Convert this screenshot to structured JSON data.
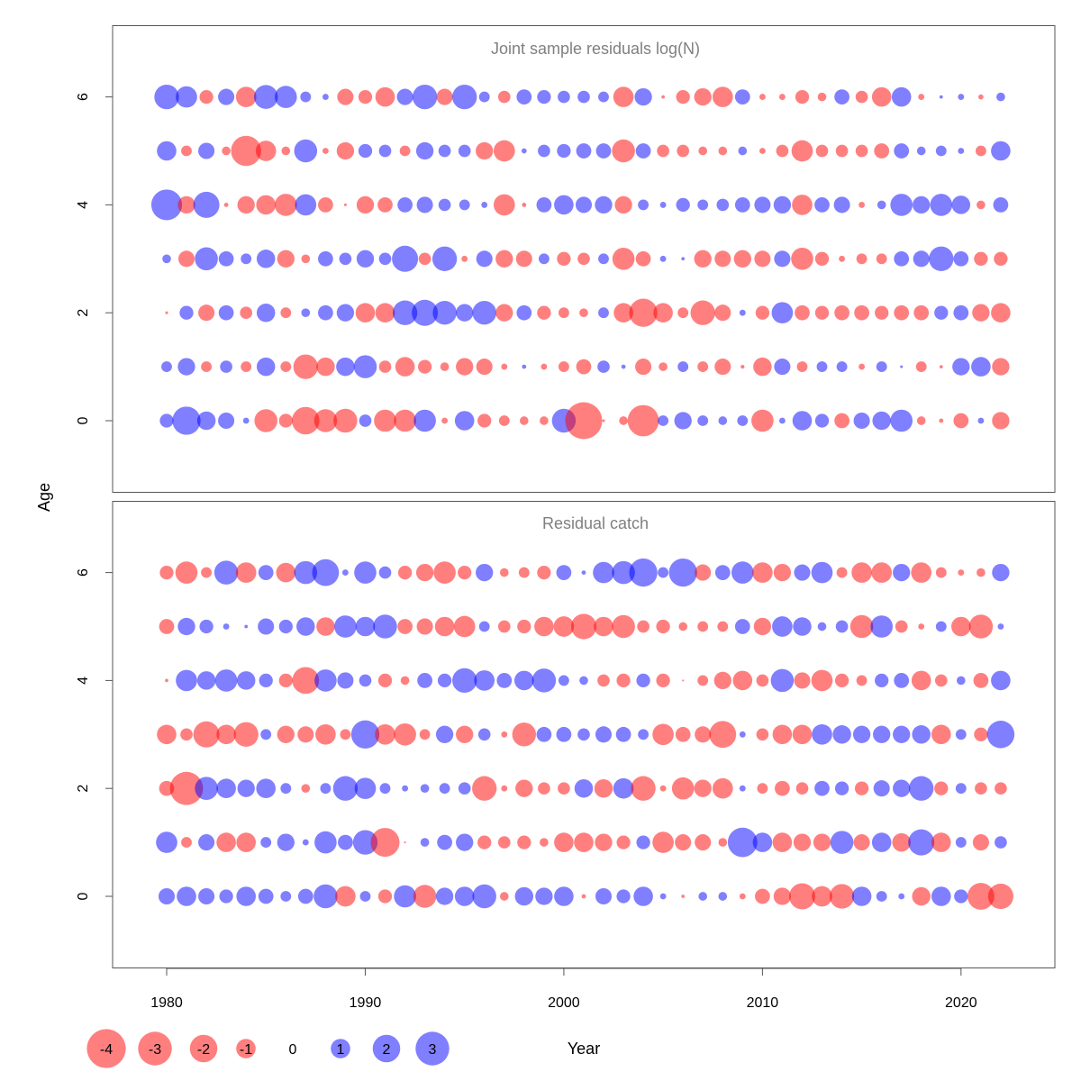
{
  "colors": {
    "negative": "#ff0000",
    "positive": "#0000ff",
    "panel_title": "#808080",
    "frame": "#555555",
    "text": "#000000"
  },
  "bubble_alpha": 0.5,
  "axis": {
    "xlabel": "Year",
    "ylabel": "Age",
    "x_ticks": [
      1980,
      1990,
      2000,
      2010,
      2020
    ],
    "x_tick_labels": [
      "1980",
      "1990",
      "2000",
      "2010",
      "2020"
    ],
    "y_ticks": [
      0,
      2,
      4,
      6
    ],
    "y_tick_labels": [
      "0",
      "2",
      "4",
      "6"
    ]
  },
  "legend": {
    "items": [
      {
        "label": "-4",
        "value": -4
      },
      {
        "label": "-3",
        "value": -3
      },
      {
        "label": "-2",
        "value": -2
      },
      {
        "label": "-1",
        "value": -1
      },
      {
        "label": "0",
        "value": 0
      },
      {
        "label": "1",
        "value": 1
      },
      {
        "label": "2",
        "value": 2
      },
      {
        "label": "3",
        "value": 3
      }
    ]
  },
  "chart_data": [
    {
      "type": "scatter",
      "title": "Joint sample residuals log(N)",
      "xlabel": "",
      "ylabel": "Age",
      "xlim": [
        1977.5,
        2024.5
      ],
      "ylim": [
        -1.3,
        7.3
      ],
      "encoding": "bubble area proportional to |residual|; red = negative, blue = positive",
      "x": [
        1980,
        1981,
        1982,
        1983,
        1984,
        1985,
        1986,
        1987,
        1988,
        1989,
        1990,
        1991,
        1992,
        1993,
        1994,
        1995,
        1996,
        1997,
        1998,
        1999,
        2000,
        2001,
        2002,
        2003,
        2004,
        2005,
        2006,
        2007,
        2008,
        2009,
        2010,
        2011,
        2012,
        2013,
        2014,
        2015,
        2016,
        2017,
        2018,
        2019,
        2020,
        2021,
        2022
      ],
      "ages": [
        6,
        5,
        4,
        3,
        2,
        1,
        0
      ],
      "residuals": {
        "6": [
          1.6,
          1.2,
          -0.5,
          0.7,
          -1.1,
          1.5,
          1.3,
          0.3,
          0.1,
          -0.7,
          -0.5,
          -1.0,
          0.7,
          1.6,
          -0.7,
          1.6,
          0.3,
          -0.4,
          0.6,
          0.5,
          0.4,
          0.4,
          0.3,
          -1.1,
          0.8,
          -0.03,
          -0.5,
          -0.8,
          -1.1,
          0.6,
          -0.1,
          -0.1,
          -0.5,
          -0.2,
          0.6,
          -0.4,
          -1.0,
          1.0,
          -0.1,
          0.03,
          0.1,
          -0.07,
          0.2
        ],
        "5": [
          1.0,
          -0.3,
          0.7,
          -0.2,
          -2.4,
          -1.1,
          -0.2,
          1.4,
          -0.1,
          -0.8,
          0.5,
          0.4,
          -0.3,
          0.8,
          0.4,
          0.4,
          -0.8,
          -1.2,
          0.07,
          0.4,
          0.5,
          0.6,
          0.6,
          -1.4,
          0.6,
          -0.4,
          -0.4,
          -0.2,
          -0.2,
          0.2,
          -0.1,
          -0.4,
          -1.2,
          -0.4,
          -0.4,
          -0.4,
          -0.6,
          0.6,
          0.2,
          0.3,
          0.1,
          -0.3,
          1.0
        ],
        "4": [
          2.5,
          -0.8,
          1.8,
          -0.05,
          -0.8,
          -1.0,
          -1.3,
          1.2,
          -0.6,
          -0.02,
          -0.8,
          -0.6,
          0.6,
          0.7,
          0.4,
          0.3,
          0.1,
          -1.2,
          -0.05,
          0.6,
          1.0,
          0.7,
          0.8,
          -0.8,
          0.3,
          0.1,
          0.5,
          0.3,
          0.4,
          0.6,
          0.7,
          0.8,
          -1.1,
          0.6,
          0.7,
          -0.1,
          0.2,
          1.3,
          0.8,
          1.3,
          0.9,
          -0.2,
          0.6
        ],
        "3": [
          0.2,
          -0.7,
          1.4,
          0.6,
          0.3,
          0.9,
          -0.8,
          -0.2,
          0.6,
          0.4,
          0.8,
          0.4,
          1.8,
          -0.4,
          1.6,
          -0.1,
          0.7,
          -0.8,
          -0.7,
          0.3,
          -0.5,
          -0.4,
          0.3,
          -1.3,
          -0.6,
          0.1,
          0.03,
          -0.8,
          -0.7,
          -0.8,
          -0.7,
          0.7,
          -1.3,
          -0.5,
          -0.1,
          -0.3,
          -0.3,
          0.6,
          0.7,
          1.6,
          0.6,
          -0.5,
          -0.5
        ],
        "2": [
          -0.02,
          0.5,
          -0.7,
          0.6,
          -0.4,
          0.9,
          -0.3,
          0.2,
          0.6,
          0.8,
          -1.0,
          -1.0,
          1.6,
          1.8,
          1.5,
          0.8,
          1.5,
          -0.8,
          0.6,
          -0.5,
          -0.3,
          -0.2,
          0.3,
          -1.0,
          -2.1,
          -1.0,
          -0.3,
          -1.6,
          -0.7,
          0.1,
          -0.5,
          1.2,
          -0.6,
          -0.5,
          -0.6,
          -0.6,
          -0.5,
          -0.6,
          -0.6,
          0.5,
          0.6,
          -0.8,
          -1.0
        ],
        "1": [
          0.3,
          0.8,
          -0.3,
          0.4,
          -0.3,
          0.9,
          -0.3,
          -1.6,
          -0.9,
          0.9,
          1.4,
          -0.4,
          -1.0,
          -0.5,
          -0.2,
          -0.8,
          -0.7,
          -0.1,
          0.05,
          -0.1,
          -0.3,
          -0.6,
          0.4,
          0.05,
          -0.7,
          -0.2,
          0.3,
          -0.3,
          -0.7,
          -0.04,
          -0.9,
          0.7,
          -0.3,
          0.3,
          0.3,
          -0.1,
          0.3,
          0.02,
          -0.3,
          -0.03,
          0.8,
          1.0,
          -0.8
        ],
        "0": [
          0.5,
          2.1,
          0.9,
          0.7,
          0.1,
          -1.4,
          -0.5,
          -2.0,
          -1.4,
          -1.5,
          0.4,
          -1.3,
          -1.3,
          1.3,
          -0.1,
          1.0,
          -0.5,
          -0.3,
          -0.2,
          -0.2,
          1.5,
          -3.6,
          -0.02,
          -0.2,
          -2.6,
          0.3,
          0.8,
          0.3,
          0.2,
          0.3,
          -1.3,
          0.1,
          1.0,
          0.5,
          -0.6,
          0.7,
          0.9,
          1.3,
          -0.2,
          -0.05,
          -0.6,
          0.1,
          -0.8
        ]
      }
    },
    {
      "type": "scatter",
      "title": "Residual catch",
      "xlabel": "Year",
      "ylabel": "Age",
      "xlim": [
        1977.5,
        2024.5
      ],
      "ylim": [
        -1.3,
        7.3
      ],
      "encoding": "bubble area proportional to |residual|; red = negative, blue = positive",
      "x": [
        1980,
        1981,
        1982,
        1983,
        1984,
        1985,
        1986,
        1987,
        1988,
        1989,
        1990,
        1991,
        1992,
        1993,
        1994,
        1995,
        1996,
        1997,
        1998,
        1999,
        2000,
        2001,
        2002,
        2003,
        2004,
        2005,
        2006,
        2007,
        2008,
        2009,
        2010,
        2011,
        2012,
        2013,
        2014,
        2015,
        2016,
        2017,
        2018,
        2019,
        2020,
        2021,
        2022
      ],
      "ages": [
        6,
        5,
        4,
        3,
        2,
        1,
        0
      ],
      "residuals": {
        "6": [
          -0.5,
          -1.3,
          -0.3,
          1.5,
          -1.1,
          0.6,
          -1.0,
          1.4,
          1.9,
          0.1,
          1.3,
          0.4,
          -0.5,
          -0.8,
          -1.3,
          -0.5,
          0.8,
          -0.2,
          -0.3,
          -0.5,
          0.6,
          0.05,
          1.2,
          1.4,
          2.1,
          0.3,
          2.1,
          -0.7,
          0.6,
          1.3,
          -1.1,
          -0.8,
          0.7,
          1.2,
          -0.3,
          -1.1,
          -1.1,
          0.8,
          -1.1,
          -0.3,
          -0.1,
          -0.2,
          0.8
        ],
        "5": [
          -0.6,
          0.8,
          0.5,
          0.1,
          0.03,
          0.7,
          0.5,
          0.9,
          -0.9,
          1.3,
          1.0,
          1.5,
          -0.6,
          -0.7,
          -1.0,
          -1.2,
          0.3,
          -0.4,
          -0.5,
          -1.0,
          -1.1,
          -1.7,
          -1.0,
          -1.4,
          -0.4,
          -0.5,
          -0.2,
          -0.3,
          -0.3,
          0.6,
          -0.8,
          1.1,
          0.9,
          0.2,
          0.4,
          -1.4,
          1.3,
          -0.4,
          -0.1,
          0.3,
          -1.0,
          -1.5,
          0.1
        ],
        "4": [
          -0.03,
          1.2,
          0.9,
          1.3,
          0.9,
          0.5,
          -0.5,
          -1.9,
          1.3,
          0.7,
          0.4,
          -0.5,
          -0.2,
          0.6,
          0.5,
          1.6,
          1.1,
          0.6,
          1.0,
          1.5,
          0.3,
          0.2,
          -0.4,
          -0.5,
          0.5,
          -0.5,
          -0.01,
          -0.3,
          -0.8,
          -1.0,
          -0.4,
          1.4,
          -0.7,
          -1.2,
          -0.5,
          -0.3,
          0.5,
          0.6,
          -1.0,
          -0.4,
          0.2,
          -0.6,
          1.0
        ],
        "3": [
          -1.0,
          -0.4,
          -1.8,
          -1.0,
          -1.6,
          0.3,
          -0.8,
          -0.7,
          -1.1,
          -0.3,
          2.1,
          -1.1,
          -1.3,
          -0.3,
          0.8,
          -0.8,
          0.4,
          -0.1,
          -1.5,
          0.6,
          0.6,
          0.4,
          0.7,
          0.6,
          0.3,
          -1.2,
          -0.6,
          -0.7,
          -1.9,
          0.1,
          -0.4,
          -1.0,
          -1.0,
          1.1,
          0.9,
          0.8,
          0.8,
          0.8,
          0.9,
          -1.0,
          0.3,
          -0.5,
          2.0
        ],
        "2": [
          -0.6,
          -2.9,
          1.4,
          1.0,
          0.8,
          1.0,
          0.3,
          -0.2,
          0.3,
          1.6,
          1.2,
          0.3,
          0.1,
          0.2,
          0.3,
          0.4,
          -1.6,
          -0.1,
          -0.8,
          -0.4,
          -0.4,
          0.9,
          -0.9,
          1.1,
          -1.6,
          -0.1,
          -1.3,
          -0.8,
          -1.1,
          0.1,
          -0.3,
          -0.6,
          -0.4,
          0.6,
          0.5,
          -0.5,
          0.7,
          0.8,
          1.6,
          -0.5,
          0.3,
          -0.4,
          -0.4
        ],
        "1": [
          1.2,
          -0.3,
          0.7,
          -1.0,
          -1.0,
          0.3,
          0.8,
          0.1,
          1.3,
          0.6,
          1.6,
          -2.2,
          -0.01,
          0.2,
          0.6,
          0.8,
          -0.5,
          -0.4,
          -0.5,
          -0.2,
          -1.0,
          -1.0,
          -0.8,
          -0.5,
          0.5,
          -1.2,
          -0.7,
          -0.7,
          -0.2,
          2.3,
          1.0,
          -1.0,
          -0.8,
          -0.8,
          1.4,
          -0.7,
          1.0,
          -0.9,
          1.8,
          -1.0,
          0.3,
          -0.7,
          0.4
        ],
        "0": [
          0.7,
          1.0,
          0.7,
          0.5,
          1.0,
          0.6,
          0.3,
          0.6,
          1.5,
          -1.1,
          0.3,
          -0.5,
          1.3,
          -1.4,
          0.8,
          1.0,
          1.5,
          -0.2,
          0.9,
          0.8,
          1.0,
          -0.05,
          0.7,
          0.5,
          1.0,
          0.1,
          -0.03,
          0.2,
          0.2,
          -0.1,
          -0.6,
          -0.8,
          -1.8,
          -1.1,
          -1.6,
          1.0,
          0.3,
          0.1,
          -0.9,
          1.0,
          0.5,
          -1.9,
          -1.7
        ]
      }
    }
  ]
}
